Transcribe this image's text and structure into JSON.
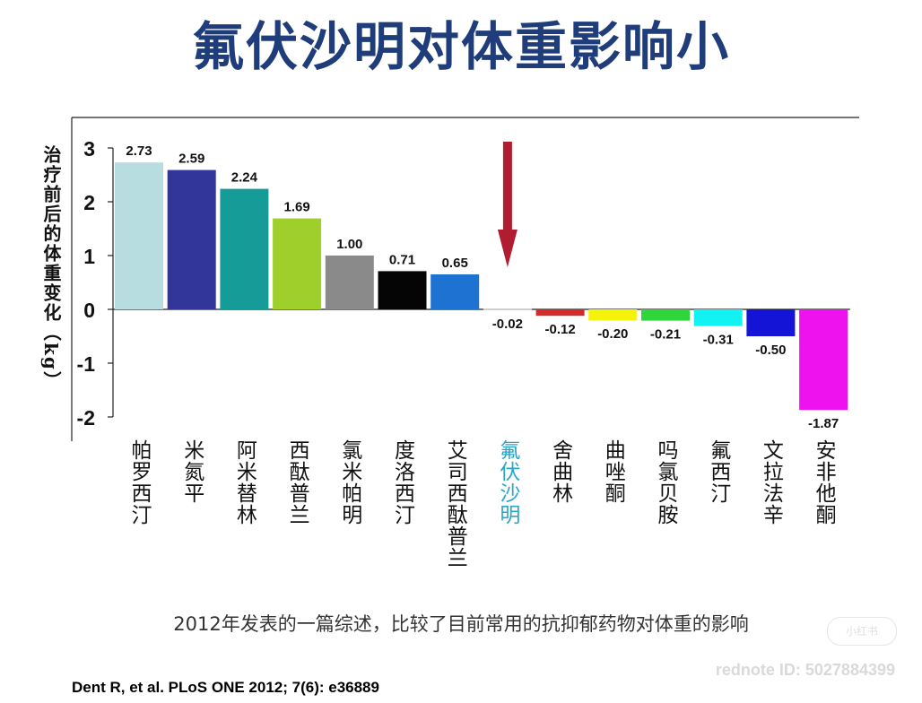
{
  "page": {
    "title": "氟伏沙明对体重影响小",
    "caption": "2012年发表的一篇综述，比较了目前常用的抗抑郁药物对体重的影响",
    "citation": "Dent R, et al. PLoS ONE 2012; 7(6): e36889",
    "watermark": "rednote ID: 5027884399",
    "logo_text": "小红书"
  },
  "chart_data": {
    "type": "bar",
    "title": "",
    "xlabel": "",
    "ylabel": "治疗前后的体重变化（kg）",
    "ylim": [
      -2,
      3
    ],
    "yticks": [
      "3",
      "2",
      "1",
      "0",
      "-1",
      "-2"
    ],
    "categories": [
      "帕罗西汀",
      "米氮平",
      "阿米替林",
      "西酞普兰",
      "氯米帕明",
      "度洛西汀",
      "艾司西酞普兰",
      "氟伏沙明",
      "舍曲林",
      "曲唑酮",
      "吗氯贝胺",
      "氟西汀",
      "文拉法辛",
      "安非他酮"
    ],
    "values": [
      2.73,
      2.59,
      2.24,
      1.69,
      1.0,
      0.71,
      0.65,
      -0.02,
      -0.12,
      -0.2,
      -0.21,
      -0.31,
      -0.5,
      -1.87
    ],
    "value_labels": [
      "2.73",
      "2.59",
      "2.24",
      "1.69",
      "1.00",
      "0.71",
      "0.65",
      "-0.02",
      "-0.12",
      "-0.20",
      "-0.21",
      "-0.31",
      "-0.50",
      "-1.87"
    ],
    "colors": [
      "#b7dde1",
      "#32359a",
      "#169c98",
      "#9fcf2a",
      "#8a8a8a",
      "#050505",
      "#1e72d2",
      "#cfcfcf",
      "#d32a2a",
      "#f5f20c",
      "#2ed53b",
      "#13f2f2",
      "#1414d6",
      "#ee12ee"
    ],
    "highlight_category": "氟伏沙明",
    "highlight_color": "#2aa6c8",
    "arrow_color": "#b01c30",
    "grid": false
  }
}
